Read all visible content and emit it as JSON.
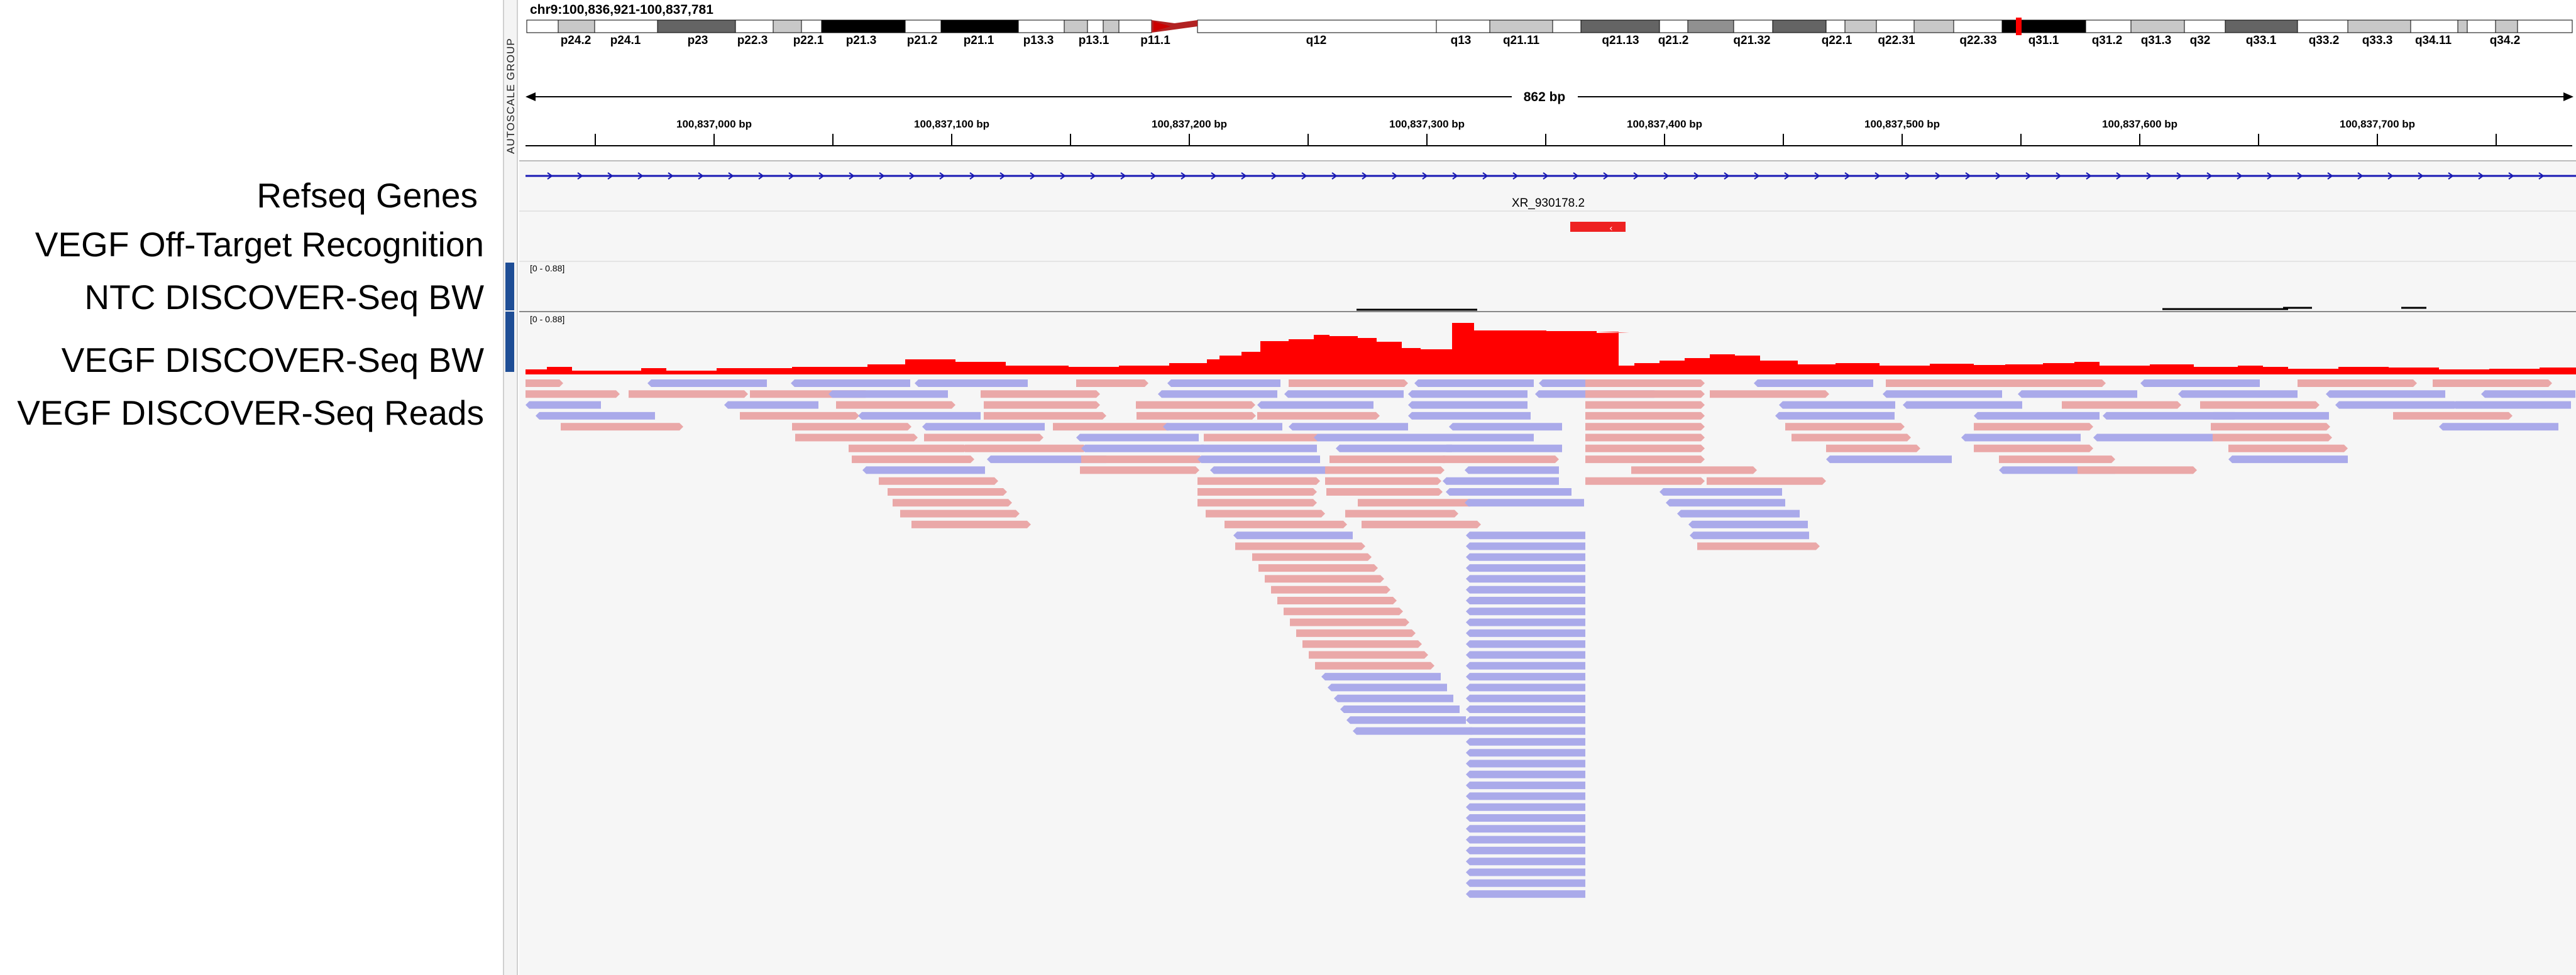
{
  "locus": "chr9:100,836,921-100,837,781",
  "autoscale_label": "AUTOSCALE GROUP",
  "span_label": "862 bp",
  "cytobands": [
    "p24.2",
    "p24.1",
    "p23",
    "p22.3",
    "p22.1",
    "p21.3",
    "p21.2",
    "p21.1",
    "p13.3",
    "p13.1",
    "p11.1",
    "q12",
    "q13",
    "q21.11",
    "q21.13",
    "q21.2",
    "q21.32",
    "q22.1",
    "q22.31",
    "q22.33",
    "q31.1",
    "q31.2",
    "q31.3",
    "q32",
    "q33.1",
    "q33.2",
    "q33.3",
    "q34.11",
    "q34.2"
  ],
  "ruler_ticks": [
    "100,837,000 bp",
    "100,837,100 bp",
    "100,837,200 bp",
    "100,837,300 bp",
    "100,837,400 bp",
    "100,837,500 bp",
    "100,837,600 bp",
    "100,837,700 bp"
  ],
  "tracks": {
    "refseq": "Refseq Genes",
    "offtarget": "VEGF Off-Target Recognition",
    "ntc_bw": "NTC DISCOVER-Seq BW",
    "vegf_bw": "VEGF DISCOVER-Seq BW",
    "vegf_reads": "VEGF DISCOVER-Seq Reads"
  },
  "gene_label": "XR_930178.2",
  "ntc_range": "[0 - 0.88]",
  "vegf_range": "[0 - 0.88]",
  "colors": {
    "coverage": "#ff0000",
    "forward_read": "#eaa8a8",
    "reverse_read": "#aaaaea",
    "gene_line": "#1a1ab4",
    "feature": "#ee2222",
    "marker": "#1f4e96",
    "background": "#f6f6f6"
  }
}
